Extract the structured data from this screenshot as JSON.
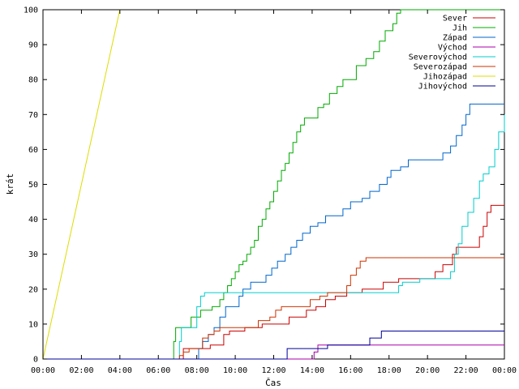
{
  "chart_data": {
    "type": "line",
    "xlabel": "Čas",
    "ylabel": "krát",
    "xlim": [
      0,
      24
    ],
    "ylim": [
      0,
      100
    ],
    "x_ticks": [
      "00:00",
      "02:00",
      "04:00",
      "06:00",
      "08:00",
      "10:00",
      "12:00",
      "14:00",
      "16:00",
      "18:00",
      "20:00",
      "22:00",
      "00:00"
    ],
    "y_ticks": [
      "0",
      "10",
      "20",
      "30",
      "40",
      "50",
      "60",
      "70",
      "80",
      "90",
      "100"
    ],
    "legend_position": "top-right",
    "series": [
      {
        "name": "Sever",
        "color": "#cc0000",
        "step": true,
        "points": [
          [
            0,
            0
          ],
          [
            7.2,
            0
          ],
          [
            7.3,
            3
          ],
          [
            8.5,
            3
          ],
          [
            8.7,
            4
          ],
          [
            9.3,
            4
          ],
          [
            9.4,
            7
          ],
          [
            9.6,
            7
          ],
          [
            9.7,
            8
          ],
          [
            10.3,
            8
          ],
          [
            10.5,
            9
          ],
          [
            11.2,
            9
          ],
          [
            11.4,
            10
          ],
          [
            12.5,
            10
          ],
          [
            12.8,
            12
          ],
          [
            13.5,
            12
          ],
          [
            13.7,
            14
          ],
          [
            14.0,
            14
          ],
          [
            14.2,
            15
          ],
          [
            14.5,
            15
          ],
          [
            14.7,
            17
          ],
          [
            15.0,
            17
          ],
          [
            15.2,
            18
          ],
          [
            15.6,
            18
          ],
          [
            15.8,
            19
          ],
          [
            16.3,
            19
          ],
          [
            16.6,
            20
          ],
          [
            17.5,
            20
          ],
          [
            17.7,
            22
          ],
          [
            18.3,
            22
          ],
          [
            18.5,
            23
          ],
          [
            20.2,
            23
          ],
          [
            20.4,
            25
          ],
          [
            20.6,
            25
          ],
          [
            20.8,
            27
          ],
          [
            21.1,
            27
          ],
          [
            21.3,
            30
          ],
          [
            21.5,
            32
          ],
          [
            22.5,
            32
          ],
          [
            22.7,
            35
          ],
          [
            22.9,
            38
          ],
          [
            23.1,
            42
          ],
          [
            23.3,
            44
          ],
          [
            24,
            44
          ]
        ]
      },
      {
        "name": "Jih",
        "color": "#00aa00",
        "step": true,
        "points": [
          [
            0,
            0
          ],
          [
            6.6,
            0
          ],
          [
            6.8,
            5
          ],
          [
            6.9,
            9
          ],
          [
            7.5,
            9
          ],
          [
            7.7,
            12
          ],
          [
            8.0,
            12
          ],
          [
            8.2,
            14
          ],
          [
            8.6,
            14
          ],
          [
            8.8,
            15
          ],
          [
            9.0,
            15
          ],
          [
            9.2,
            17
          ],
          [
            9.4,
            19
          ],
          [
            9.6,
            21
          ],
          [
            9.8,
            23
          ],
          [
            10.0,
            25
          ],
          [
            10.2,
            27
          ],
          [
            10.4,
            28
          ],
          [
            10.6,
            30
          ],
          [
            10.8,
            32
          ],
          [
            11.0,
            34
          ],
          [
            11.2,
            38
          ],
          [
            11.4,
            40
          ],
          [
            11.6,
            43
          ],
          [
            11.8,
            45
          ],
          [
            12.0,
            48
          ],
          [
            12.2,
            51
          ],
          [
            12.4,
            54
          ],
          [
            12.6,
            56
          ],
          [
            12.8,
            59
          ],
          [
            13.0,
            62
          ],
          [
            13.2,
            65
          ],
          [
            13.4,
            67
          ],
          [
            13.6,
            69
          ],
          [
            14.1,
            69
          ],
          [
            14.3,
            72
          ],
          [
            14.6,
            73
          ],
          [
            14.9,
            76
          ],
          [
            15.3,
            78
          ],
          [
            15.6,
            80
          ],
          [
            16.0,
            80
          ],
          [
            16.3,
            84
          ],
          [
            16.8,
            86
          ],
          [
            17.2,
            88
          ],
          [
            17.5,
            91
          ],
          [
            17.8,
            94
          ],
          [
            18.2,
            96
          ],
          [
            18.4,
            99
          ],
          [
            18.6,
            100
          ],
          [
            24,
            100
          ]
        ]
      },
      {
        "name": "Západ",
        "color": "#0066cc",
        "step": true,
        "points": [
          [
            0,
            0
          ],
          [
            8.0,
            0
          ],
          [
            8.1,
            3
          ],
          [
            8.3,
            5
          ],
          [
            8.6,
            7
          ],
          [
            8.9,
            9
          ],
          [
            9.2,
            12
          ],
          [
            9.5,
            15
          ],
          [
            9.9,
            15
          ],
          [
            10.2,
            18
          ],
          [
            10.4,
            20
          ],
          [
            10.8,
            22
          ],
          [
            11.4,
            22
          ],
          [
            11.6,
            24
          ],
          [
            11.9,
            26
          ],
          [
            12.2,
            28
          ],
          [
            12.6,
            30
          ],
          [
            12.9,
            32
          ],
          [
            13.2,
            34
          ],
          [
            13.5,
            36
          ],
          [
            13.9,
            38
          ],
          [
            14.3,
            39
          ],
          [
            14.7,
            41
          ],
          [
            15.4,
            41
          ],
          [
            15.6,
            43
          ],
          [
            16.0,
            45
          ],
          [
            16.6,
            46
          ],
          [
            17.0,
            48
          ],
          [
            17.5,
            50
          ],
          [
            17.9,
            52
          ],
          [
            18.1,
            54
          ],
          [
            18.6,
            55
          ],
          [
            19.0,
            57
          ],
          [
            20.5,
            57
          ],
          [
            20.8,
            59
          ],
          [
            21.2,
            61
          ],
          [
            21.5,
            64
          ],
          [
            21.8,
            67
          ],
          [
            22.0,
            70
          ],
          [
            22.2,
            73
          ],
          [
            24,
            73
          ]
        ]
      },
      {
        "name": "Východ",
        "color": "#aa00aa",
        "step": true,
        "points": [
          [
            0,
            0
          ],
          [
            14.0,
            0
          ],
          [
            14.1,
            2
          ],
          [
            14.3,
            4
          ],
          [
            24,
            4
          ]
        ]
      },
      {
        "name": "Severovýchod",
        "color": "#00cccc",
        "step": true,
        "points": [
          [
            0,
            0
          ],
          [
            7.0,
            0
          ],
          [
            7.1,
            5
          ],
          [
            7.2,
            9
          ],
          [
            7.8,
            9
          ],
          [
            8.0,
            15
          ],
          [
            8.2,
            18
          ],
          [
            8.4,
            19
          ],
          [
            17.7,
            19
          ],
          [
            18.5,
            21
          ],
          [
            18.7,
            22
          ],
          [
            19.4,
            22
          ],
          [
            19.6,
            23
          ],
          [
            20.3,
            23
          ],
          [
            21.2,
            25
          ],
          [
            21.4,
            30
          ],
          [
            21.6,
            33
          ],
          [
            21.8,
            38
          ],
          [
            22.1,
            42
          ],
          [
            22.4,
            46
          ],
          [
            22.7,
            51
          ],
          [
            22.9,
            53
          ],
          [
            23.2,
            55
          ],
          [
            23.5,
            60
          ],
          [
            23.7,
            65
          ],
          [
            24.0,
            70
          ],
          [
            24,
            70
          ]
        ]
      },
      {
        "name": "Severozápad",
        "color": "#cc3300",
        "step": true,
        "points": [
          [
            0,
            0
          ],
          [
            7.0,
            0
          ],
          [
            7.1,
            1
          ],
          [
            7.3,
            2
          ],
          [
            7.6,
            3
          ],
          [
            8.1,
            3
          ],
          [
            8.3,
            6
          ],
          [
            8.6,
            7
          ],
          [
            8.9,
            8
          ],
          [
            9.2,
            9
          ],
          [
            11.0,
            9
          ],
          [
            11.2,
            11
          ],
          [
            11.6,
            11
          ],
          [
            11.8,
            12
          ],
          [
            12.1,
            14
          ],
          [
            12.4,
            15
          ],
          [
            13.7,
            15
          ],
          [
            13.9,
            17
          ],
          [
            14.2,
            17
          ],
          [
            14.4,
            18
          ],
          [
            14.8,
            19
          ],
          [
            15.6,
            19
          ],
          [
            15.8,
            21
          ],
          [
            16.0,
            24
          ],
          [
            16.3,
            26
          ],
          [
            16.5,
            28
          ],
          [
            16.8,
            29
          ],
          [
            24,
            29
          ]
        ]
      },
      {
        "name": "Jihozápad",
        "color": "#dddd00",
        "step": false,
        "points": [
          [
            0,
            0
          ],
          [
            4.0,
            100
          ]
        ]
      },
      {
        "name": "Jihovýchod",
        "color": "#000099",
        "step": true,
        "points": [
          [
            0,
            0
          ],
          [
            12.6,
            0
          ],
          [
            12.7,
            3
          ],
          [
            14.6,
            3
          ],
          [
            14.8,
            4
          ],
          [
            16.8,
            4
          ],
          [
            17.0,
            6
          ],
          [
            17.4,
            6
          ],
          [
            17.6,
            8
          ],
          [
            24,
            8
          ]
        ]
      }
    ]
  }
}
